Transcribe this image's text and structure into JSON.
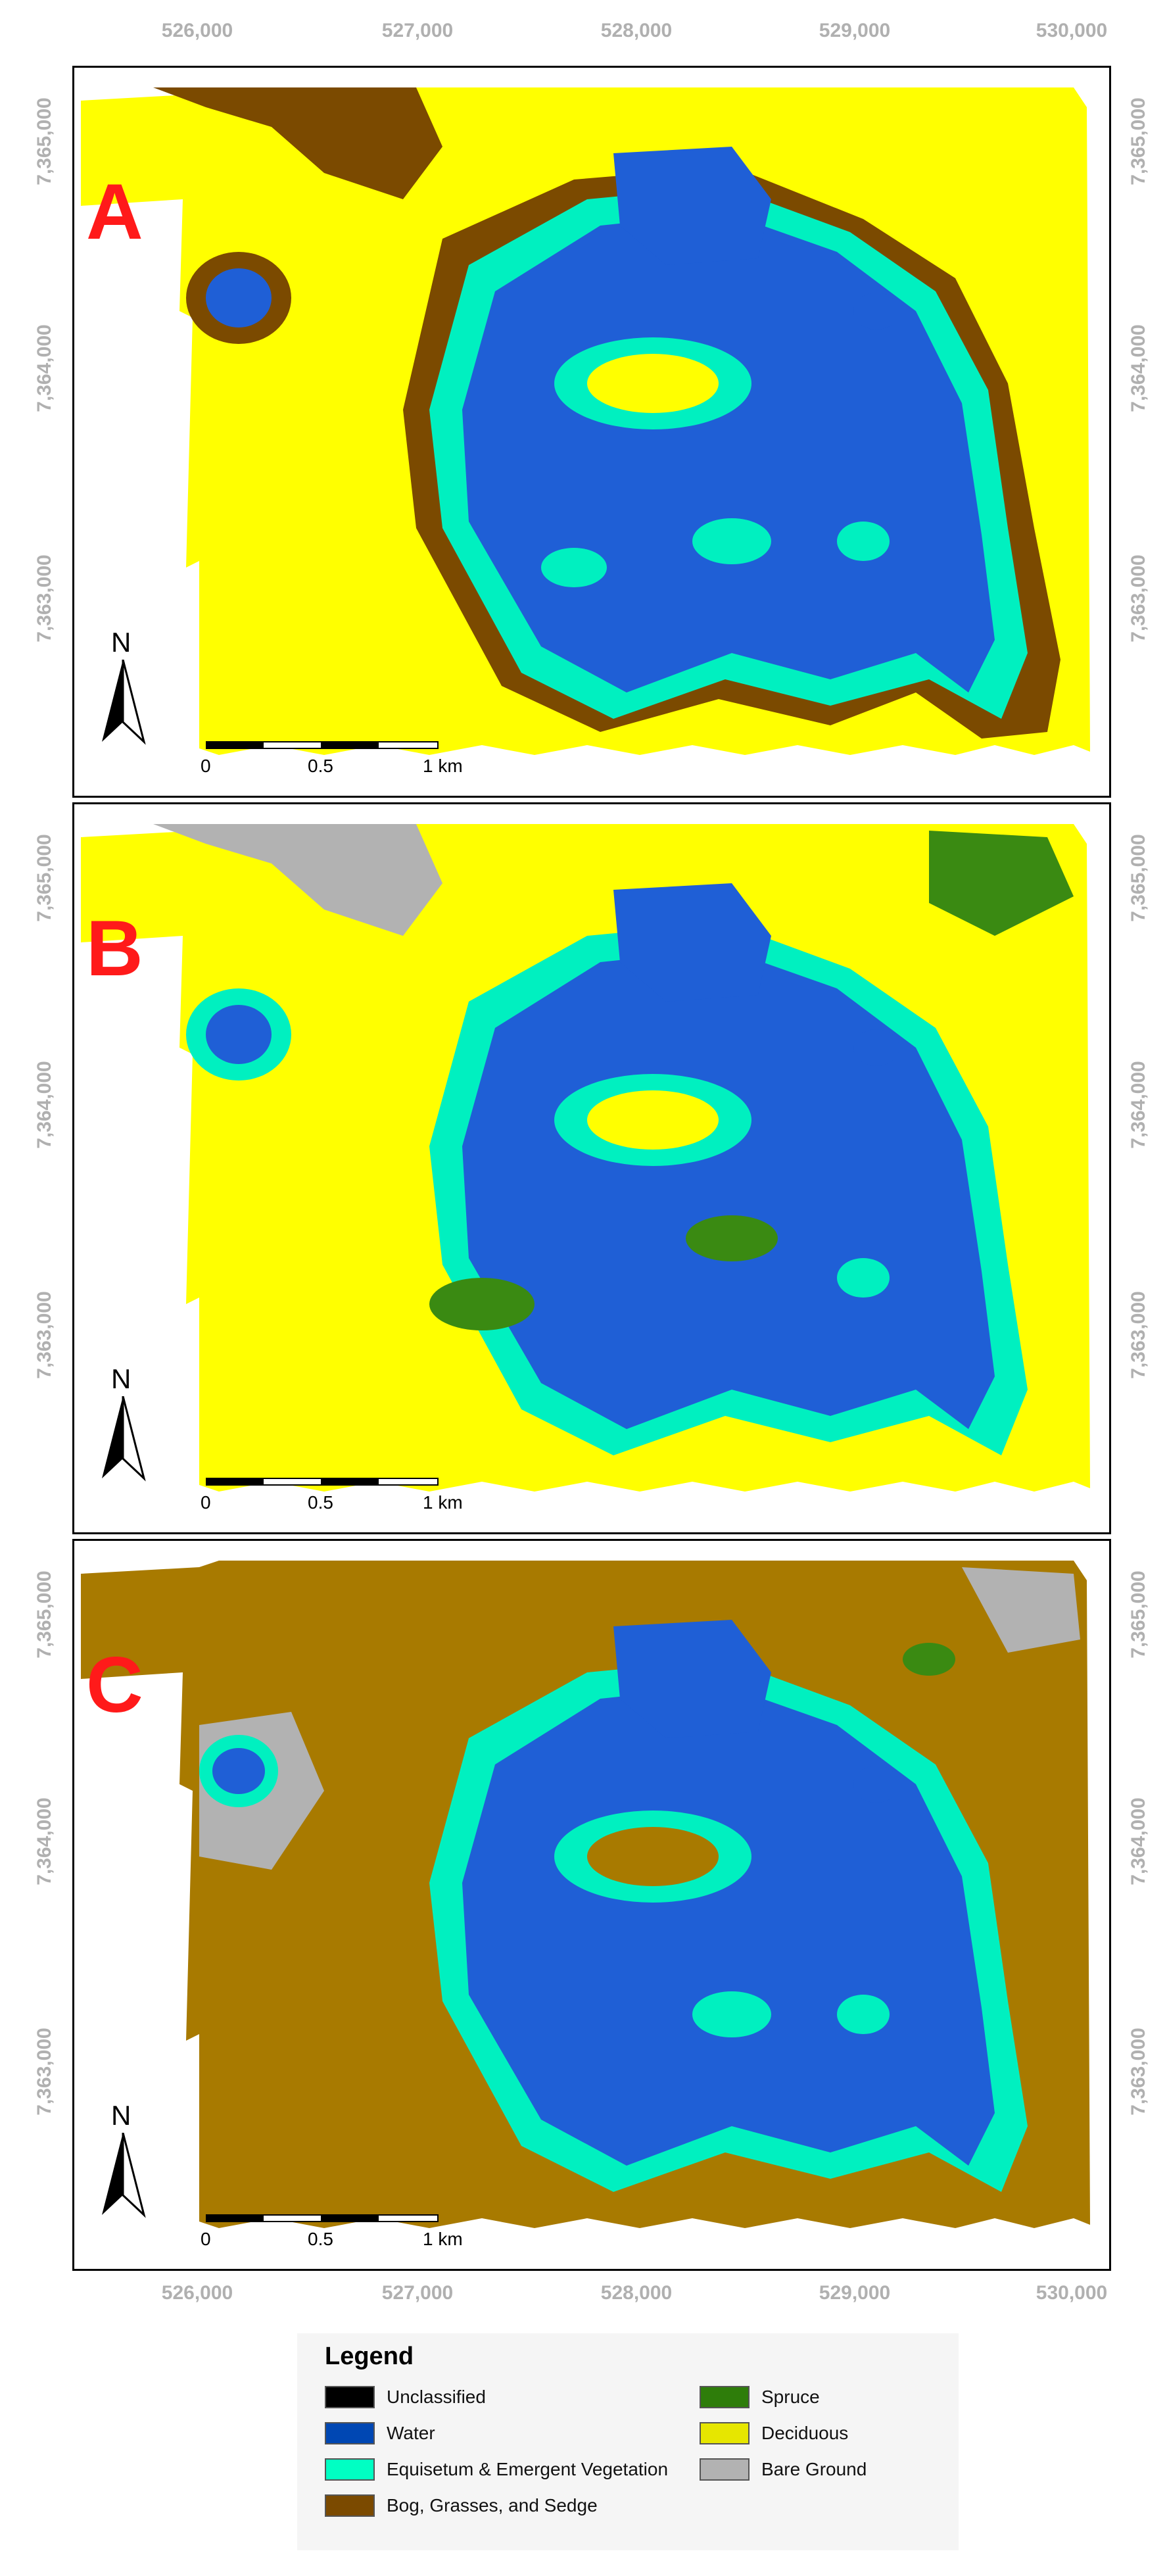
{
  "x_ticks": [
    "526,000",
    "527,000",
    "528,000",
    "529,000",
    "530,000"
  ],
  "y_ticks": [
    "7,365,000",
    "7,364,000",
    "7,363,000"
  ],
  "panels": [
    {
      "label": "A",
      "background": "#ffff00",
      "dark": "#7b4a00"
    },
    {
      "label": "B",
      "background": "#ffff00",
      "dark": "#b2b2b2"
    },
    {
      "label": "C",
      "background": "#a87a00",
      "dark": "#b2b2b2"
    }
  ],
  "north_label": "N",
  "scale_bar": {
    "labels": [
      "0",
      "0.5",
      "1 km"
    ]
  },
  "legend": {
    "title": "Legend",
    "items": [
      {
        "label": "Unclassified",
        "color": "#000000"
      },
      {
        "label": "Water",
        "color": "#0047b3"
      },
      {
        "label": "Equisetum & Emergent Vegetation",
        "color": "#00ffc3"
      },
      {
        "label": "Bog, Grasses, and Sedge",
        "color": "#7b4a00"
      },
      {
        "label": "Spruce",
        "color": "#2e7d0a"
      },
      {
        "label": "Deciduous",
        "color": "#e6e600"
      },
      {
        "label": "Bare Ground",
        "color": "#b2b2b2"
      }
    ]
  },
  "colors": {
    "water": "#1f5fd6",
    "emergent": "#00f0c0",
    "spruce": "#3a8a12",
    "label_red": "#ff1a1a"
  }
}
